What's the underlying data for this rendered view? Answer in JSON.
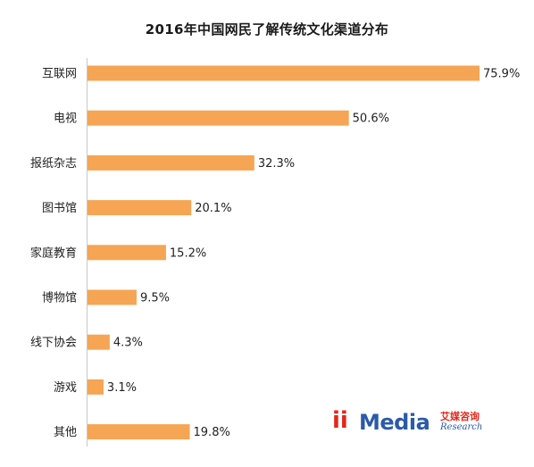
{
  "chart_data": {
    "type": "bar",
    "orientation": "horizontal",
    "title": "2016年中国网民了解传统文化渠道分布",
    "categories": [
      "互联网",
      "电视",
      "报纸杂志",
      "图书馆",
      "家庭教育",
      "博物馆",
      "线下协会",
      "游戏",
      "其他"
    ],
    "values": [
      75.9,
      50.6,
      32.3,
      20.1,
      15.2,
      9.5,
      4.3,
      3.1,
      19.8
    ],
    "value_labels": [
      "75.9%",
      "50.6%",
      "32.3%",
      "20.1%",
      "15.2%",
      "9.5%",
      "4.3%",
      "3.1%",
      "19.8%"
    ],
    "unit": "%",
    "xlim": [
      0,
      75.9
    ],
    "grid": false,
    "legend": "none",
    "bar_color": "#f5a553"
  },
  "logo": {
    "brand_i": "ii",
    "brand_media": "Media",
    "brand_cn": "艾媒咨询",
    "brand_en": "Research"
  }
}
